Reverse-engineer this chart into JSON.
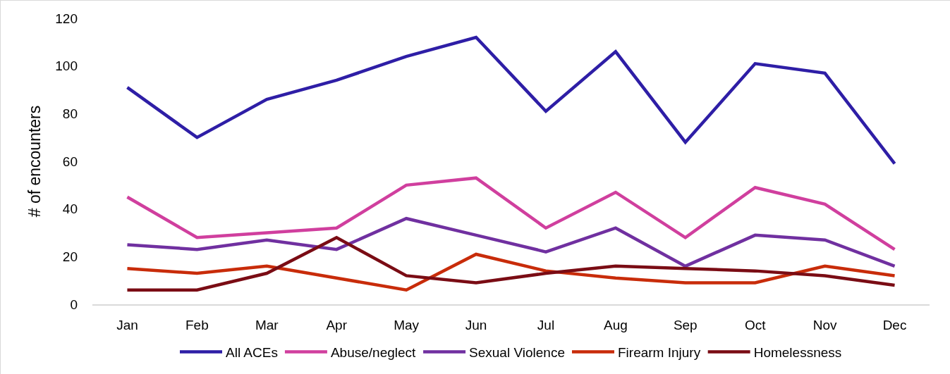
{
  "chart_data": {
    "type": "line",
    "ylabel": "# of encounters",
    "categories": [
      "Jan",
      "Feb",
      "Mar",
      "Apr",
      "May",
      "Jun",
      "Jul",
      "Aug",
      "Sep",
      "Oct",
      "Nov",
      "Dec"
    ],
    "series": [
      {
        "name": "All ACEs",
        "color": "#2e1ea6",
        "values": [
          91,
          70,
          86,
          94,
          104,
          112,
          81,
          106,
          68,
          101,
          97,
          59
        ]
      },
      {
        "name": "Abuse/neglect",
        "color": "#d03f9e",
        "values": [
          45,
          28,
          30,
          32,
          50,
          53,
          32,
          47,
          28,
          49,
          42,
          23
        ]
      },
      {
        "name": "Sexual Violence",
        "color": "#7030a0",
        "values": [
          25,
          23,
          27,
          23,
          36,
          29,
          22,
          32,
          16,
          29,
          27,
          16
        ]
      },
      {
        "name": "Firearm Injury",
        "color": "#c82c0a",
        "values": [
          15,
          13,
          16,
          11,
          6,
          21,
          14,
          11,
          9,
          9,
          16,
          12
        ]
      },
      {
        "name": "Homelessness",
        "color": "#7a0c14",
        "values": [
          6,
          6,
          13,
          28,
          12,
          9,
          13,
          16,
          15,
          14,
          12,
          8
        ]
      }
    ],
    "ylim": [
      0,
      120
    ],
    "yticks": [
      0,
      20,
      40,
      60,
      80,
      100,
      120
    ],
    "grid": false,
    "legend": "bottom",
    "marker": "none",
    "line_style": "solid"
  }
}
